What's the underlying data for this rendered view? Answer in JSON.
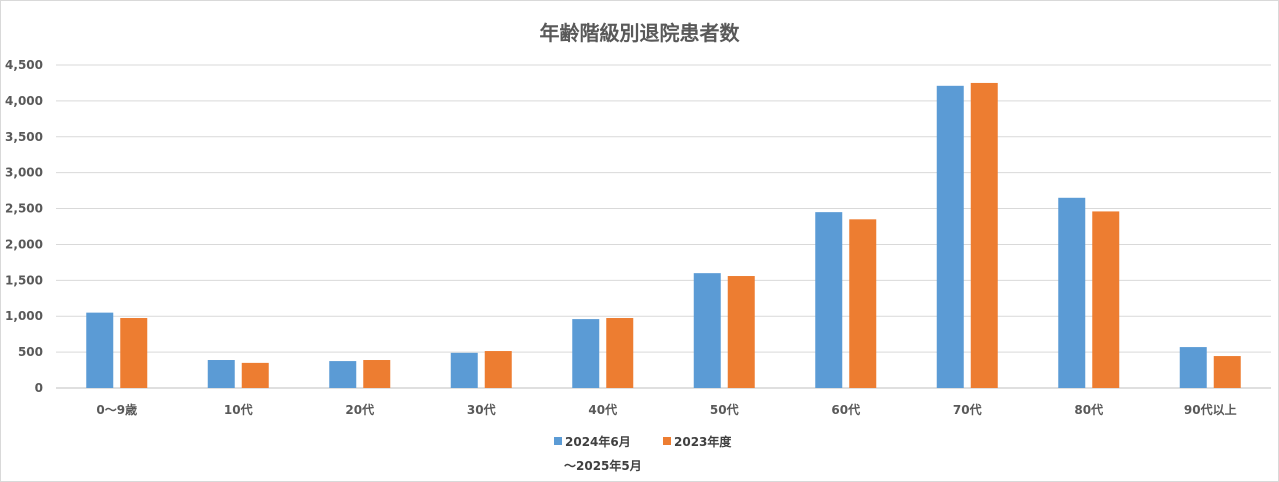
{
  "chart_data": {
    "type": "bar",
    "title": "年齢階級別退院患者数",
    "categories": [
      "0～9歳",
      "10代",
      "20代",
      "30代",
      "40代",
      "50代",
      "60代",
      "70代",
      "80代",
      "90代以上"
    ],
    "series": [
      {
        "name": "2024年6月～2025年5月",
        "name_lines": [
          "2024年6月",
          "～2025年5月"
        ],
        "color": "#5b9bd5",
        "values": [
          1050,
          390,
          375,
          490,
          960,
          1600,
          2450,
          4210,
          2650,
          570
        ]
      },
      {
        "name": "2023年度",
        "name_lines": [
          "2023年度"
        ],
        "color": "#ed7d31",
        "values": [
          975,
          350,
          390,
          515,
          975,
          1560,
          2350,
          4250,
          2460,
          445
        ]
      }
    ],
    "ylim": [
      0,
      4500
    ],
    "yticks": [
      "0",
      "500",
      "1,000",
      "1,500",
      "2,000",
      "2,500",
      "3,000",
      "3,500",
      "4,000",
      "4,500"
    ],
    "xlabel": "",
    "ylabel": "",
    "grid": true,
    "legend": "bottom-center"
  }
}
